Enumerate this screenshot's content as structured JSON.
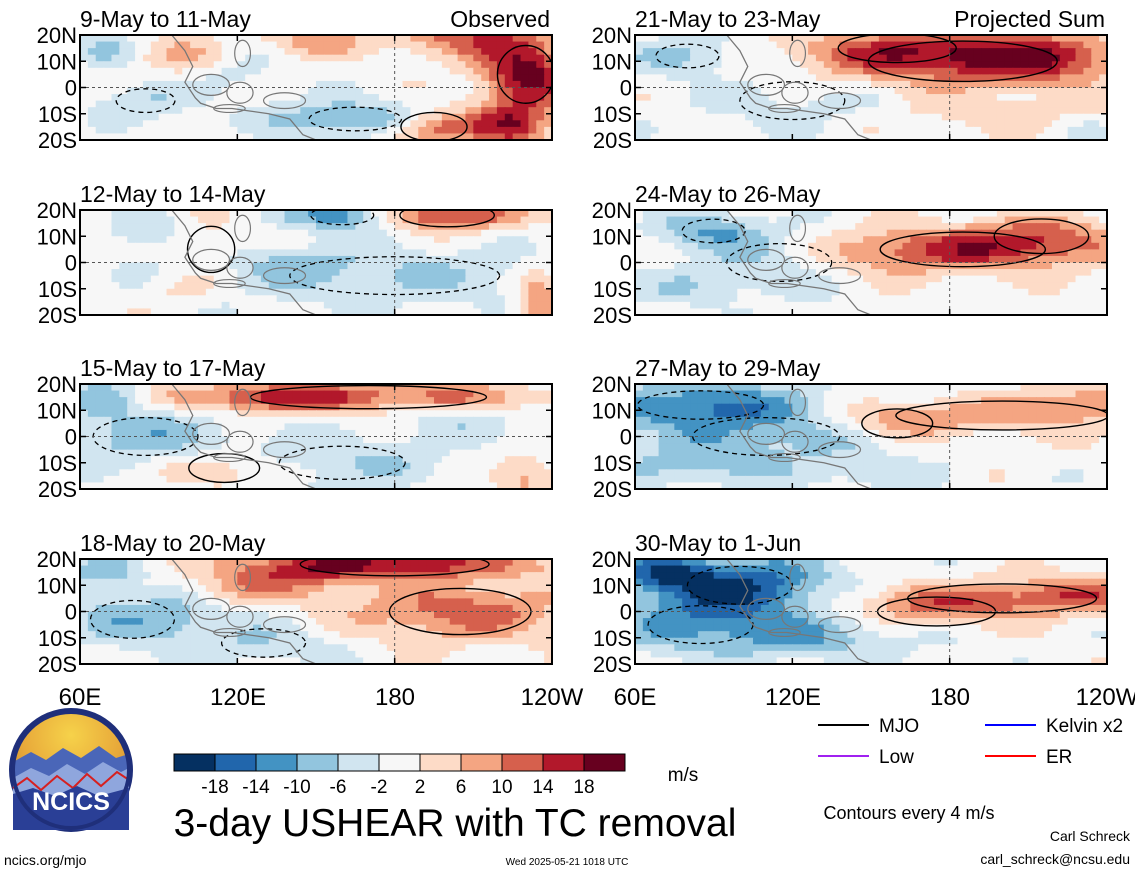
{
  "chart_data": {
    "type": "heatmap",
    "title": "3-day USHEAR with TC removal",
    "colorbar": {
      "unit_label": "m/s",
      "tick_labels": [
        "-18",
        "-14",
        "-10",
        "-6",
        "-2",
        "2",
        "6",
        "10",
        "14",
        "18"
      ],
      "colors": [
        "#053061",
        "#2166ac",
        "#4393c3",
        "#92c5de",
        "#d1e5f0",
        "#f7f7f7",
        "#fddbc7",
        "#f4a582",
        "#d6604d",
        "#b2182b",
        "#67001f"
      ]
    },
    "x_tick_labels": [
      "60E",
      "120E",
      "180",
      "120W"
    ],
    "y_tick_labels": [
      "20N",
      "10N",
      "0",
      "10S",
      "20S"
    ],
    "xlim_deg_east": [
      60,
      240
    ],
    "ylim_deg_north": [
      -20,
      20
    ],
    "column_headers": [
      "Observed",
      "Projected Sum"
    ],
    "panels": [
      {
        "period": "9-May to 11-May",
        "column": "Observed",
        "warm": [
          [
            195,
            -15,
            14,
            5,
            14
          ],
          [
            230,
            5,
            12,
            10,
            20
          ],
          [
            205,
            20,
            18,
            6,
            12
          ],
          [
            150,
            18,
            14,
            4,
            8
          ],
          [
            225,
            -15,
            10,
            6,
            14
          ],
          [
            100,
            12,
            12,
            5,
            6
          ]
        ],
        "cool": [
          [
            165,
            -12,
            22,
            5,
            -12
          ],
          [
            85,
            -5,
            14,
            5,
            -6
          ],
          [
            120,
            5,
            10,
            5,
            -4
          ],
          [
            70,
            14,
            8,
            4,
            -6
          ]
        ]
      },
      {
        "period": "21-May to 23-May",
        "column": "Projected Sum",
        "warm": [
          [
            185,
            10,
            40,
            7,
            14
          ],
          [
            160,
            15,
            25,
            5,
            8
          ],
          [
            215,
            12,
            20,
            6,
            10
          ],
          [
            200,
            -10,
            30,
            5,
            4
          ]
        ],
        "cool": [
          [
            80,
            12,
            15,
            5,
            -8
          ],
          [
            120,
            -5,
            25,
            8,
            -4
          ],
          [
            230,
            -15,
            10,
            4,
            -2
          ]
        ]
      },
      {
        "period": "12-May to 14-May",
        "column": "Observed",
        "warm": [
          [
            200,
            18,
            20,
            4,
            16
          ],
          [
            110,
            5,
            10,
            8,
            6
          ],
          [
            235,
            -15,
            6,
            8,
            12
          ],
          [
            100,
            -10,
            10,
            4,
            4
          ]
        ],
        "cool": [
          [
            160,
            18,
            15,
            4,
            -14
          ],
          [
            180,
            -5,
            50,
            8,
            -6
          ],
          [
            85,
            12,
            10,
            5,
            -6
          ],
          [
            130,
            0,
            25,
            6,
            -4
          ]
        ]
      },
      {
        "period": "24-May to 26-May",
        "column": "Projected Sum",
        "warm": [
          [
            185,
            5,
            35,
            6,
            14
          ],
          [
            215,
            10,
            20,
            6,
            8
          ],
          [
            150,
            0,
            20,
            6,
            4
          ]
        ],
        "cool": [
          [
            90,
            12,
            15,
            5,
            -10
          ],
          [
            115,
            0,
            25,
            8,
            -6
          ],
          [
            80,
            -10,
            20,
            5,
            -4
          ]
        ]
      },
      {
        "period": "15-May to 17-May",
        "column": "Observed",
        "warm": [
          [
            170,
            15,
            50,
            4,
            12
          ],
          [
            115,
            -12,
            15,
            5,
            8
          ],
          [
            230,
            -15,
            8,
            6,
            8
          ],
          [
            130,
            15,
            20,
            4,
            8
          ]
        ],
        "cool": [
          [
            85,
            0,
            25,
            8,
            -8
          ],
          [
            160,
            -10,
            30,
            7,
            -6
          ],
          [
            70,
            15,
            10,
            5,
            -8
          ],
          [
            205,
            5,
            20,
            5,
            -4
          ]
        ]
      },
      {
        "period": "27-May to 29-May",
        "column": "Projected Sum",
        "warm": [
          [
            200,
            8,
            45,
            5,
            8
          ],
          [
            160,
            5,
            15,
            5,
            6
          ],
          [
            230,
            15,
            15,
            4,
            6
          ]
        ],
        "cool": [
          [
            85,
            12,
            30,
            6,
            -14
          ],
          [
            110,
            0,
            35,
            8,
            -8
          ],
          [
            80,
            -12,
            25,
            5,
            -6
          ],
          [
            150,
            -15,
            20,
            4,
            -4
          ]
        ]
      },
      {
        "period": "18-May to 20-May",
        "column": "Observed",
        "warm": [
          [
            180,
            18,
            40,
            4,
            16
          ],
          [
            205,
            0,
            30,
            8,
            12
          ],
          [
            125,
            10,
            20,
            5,
            8
          ],
          [
            150,
            15,
            15,
            5,
            6
          ]
        ],
        "cool": [
          [
            80,
            -3,
            20,
            8,
            -8
          ],
          [
            130,
            -12,
            20,
            6,
            -6
          ],
          [
            70,
            15,
            10,
            4,
            -10
          ],
          [
            100,
            0,
            10,
            6,
            -4
          ]
        ]
      },
      {
        "period": "30-May to 1-Jun",
        "column": "Projected Sum",
        "warm": [
          [
            200,
            5,
            40,
            5,
            10
          ],
          [
            175,
            0,
            25,
            5,
            6
          ],
          [
            230,
            8,
            15,
            5,
            6
          ]
        ],
        "cool": [
          [
            100,
            10,
            25,
            8,
            -18
          ],
          [
            85,
            -5,
            25,
            8,
            -10
          ],
          [
            130,
            -10,
            25,
            6,
            -8
          ],
          [
            70,
            15,
            12,
            5,
            -12
          ]
        ]
      }
    ],
    "legend": [
      {
        "label": "MJO",
        "color": "#000000"
      },
      {
        "label": "Kelvin x2",
        "color": "#0000ff"
      },
      {
        "label": "Low",
        "color": "#a020f0"
      },
      {
        "label": "ER",
        "color": "#ff0000"
      }
    ],
    "contour_note": "Contours every 4 m/s"
  },
  "logo": {
    "text": "NCICS"
  },
  "footer": {
    "site": "ncics.org/mjo",
    "timestamp": "Wed 2025-05-21 1018 UTC",
    "author": "Carl Schreck",
    "email": "carl_schreck@ncsu.edu"
  }
}
